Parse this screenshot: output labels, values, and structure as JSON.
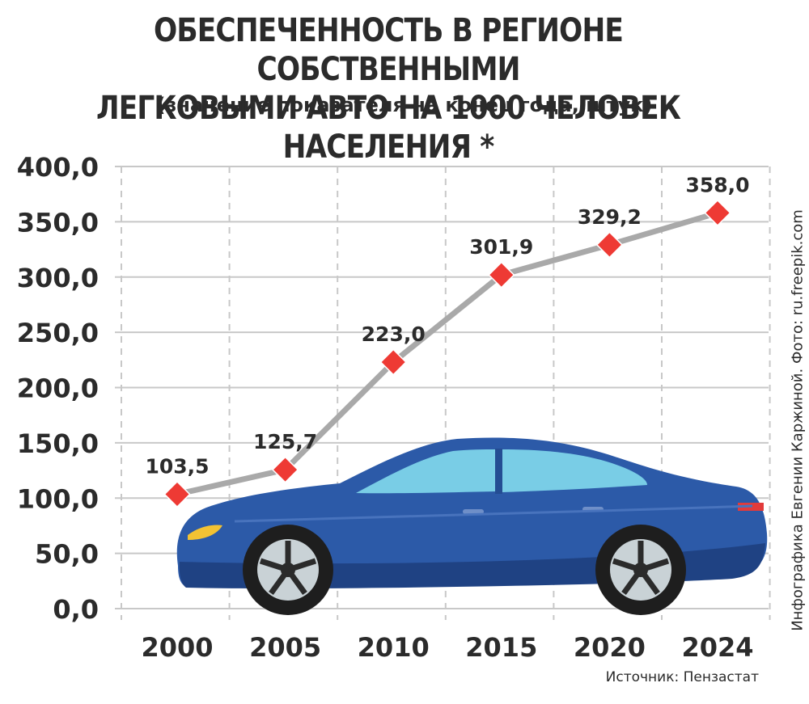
{
  "header": {
    "title_line1": "ОБЕСПЕЧЕННОСТЬ В РЕГИОНЕ СОБСТВЕННЫМИ",
    "title_line2": "ЛЕГКОВЫМИ АВТО НА 1000 ЧЕЛОВЕК НАСЕЛЕНИЯ *",
    "subtitle": "(значение показателя на конец года, штук)"
  },
  "footer": {
    "source": "Источник: Пензастат",
    "credit": "Инфографика Евгении Каржиной.  Фото: ru.freepik.com"
  },
  "colors": {
    "line": "#a9a9a9",
    "marker": "#ee3a34",
    "grid": "#c8c8c8",
    "text": "#2b2b2b",
    "car_body": "#2c5aa8",
    "car_window": "#79cde6"
  },
  "illustration": "blue-sedan-car",
  "chart_data": {
    "type": "line",
    "x": [
      "2000",
      "2005",
      "2010",
      "2015",
      "2020",
      "2024"
    ],
    "series": [
      {
        "values": [
          103.5,
          125.7,
          223.0,
          301.9,
          329.2,
          358.0
        ]
      }
    ],
    "data_labels": [
      "103,5",
      "125,7",
      "223,0",
      "301,9",
      "329,2",
      "358,0"
    ],
    "y_ticks": [
      "0,0",
      "50,0",
      "100,0",
      "150,0",
      "200,0",
      "250,0",
      "300,0",
      "350,0",
      "400,0"
    ],
    "ylim": [
      0,
      400
    ],
    "grid": true
  }
}
